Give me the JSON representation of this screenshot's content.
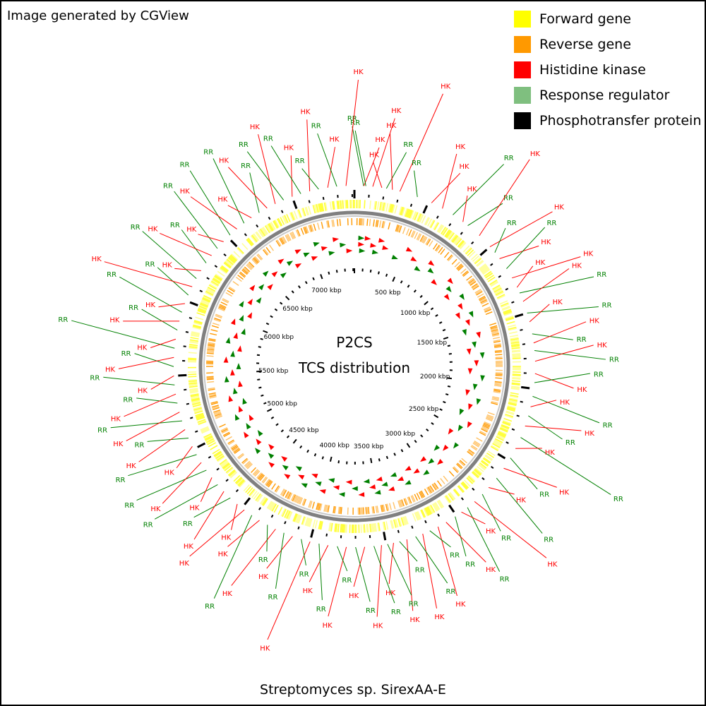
{
  "credit": "Image generated by CGView",
  "legend": [
    {
      "label": "Forward gene",
      "color": "#ffff00"
    },
    {
      "label": "Reverse gene",
      "color": "#ff9900"
    },
    {
      "label": "Histidine kinase",
      "color": "#ff0000"
    },
    {
      "label": "Response regulator",
      "color": "#7fbf7f"
    },
    {
      "label": "Phosphotransfer protein",
      "color": "#000000"
    }
  ],
  "center_title": {
    "line1": "P2CS",
    "line2": "TCS distribution"
  },
  "genome_name": "Streptomyces sp. SirexAA-E",
  "genome_length_kbp": 7415,
  "tick_labels": [
    "500 kbp",
    "1000 kbp",
    "1500 kbp",
    "2000 kbp",
    "2500 kbp",
    "3000 kbp",
    "3500 kbp",
    "4000 kbp",
    "4500 kbp",
    "5000 kbp",
    "5500 kbp",
    "6000 kbp",
    "6500 kbp",
    "7000 kbp"
  ],
  "tick_values_kbp": [
    500,
    1000,
    1500,
    2000,
    2500,
    3000,
    3500,
    4000,
    4500,
    5000,
    5500,
    6000,
    6500,
    7000
  ],
  "colors": {
    "hk": "#ff0000",
    "rr": "#008000",
    "hk_line": "#ff0000",
    "rr_line": "#008000",
    "backbone": "#808080"
  },
  "features": [
    {
      "type": "RR",
      "pos_kbp": 60
    },
    {
      "type": "HK",
      "pos_kbp": 62
    },
    {
      "type": "RR",
      "pos_kbp": 75
    },
    {
      "type": "HK",
      "pos_kbp": 120
    },
    {
      "type": "HK",
      "pos_kbp": 180
    },
    {
      "type": "RR",
      "pos_kbp": 210
    },
    {
      "type": "HK",
      "pos_kbp": 250
    },
    {
      "type": "HK",
      "pos_kbp": 300
    },
    {
      "type": "RR",
      "pos_kbp": 420
    },
    {
      "type": "HK",
      "pos_kbp": 520
    },
    {
      "type": "HK",
      "pos_kbp": 600
    },
    {
      "type": "RR",
      "pos_kbp": 680
    },
    {
      "type": "HK",
      "pos_kbp": 760
    },
    {
      "type": "RR",
      "pos_kbp": 800
    },
    {
      "type": "HK",
      "pos_kbp": 900
    },
    {
      "type": "HK",
      "pos_kbp": 1000
    },
    {
      "type": "RR",
      "pos_kbp": 1050
    },
    {
      "type": "HK",
      "pos_kbp": 1100
    },
    {
      "type": "RR",
      "pos_kbp": 1180
    },
    {
      "type": "HK",
      "pos_kbp": 1250
    },
    {
      "type": "HK",
      "pos_kbp": 1320
    },
    {
      "type": "RR",
      "pos_kbp": 1360
    },
    {
      "type": "HK",
      "pos_kbp": 1420
    },
    {
      "type": "RR",
      "pos_kbp": 1500
    },
    {
      "type": "HK",
      "pos_kbp": 1560
    },
    {
      "type": "RR",
      "pos_kbp": 1640
    },
    {
      "type": "HK",
      "pos_kbp": 1700
    },
    {
      "type": "RR",
      "pos_kbp": 1750
    },
    {
      "type": "HK",
      "pos_kbp": 1820
    },
    {
      "type": "HK",
      "pos_kbp": 1900
    },
    {
      "type": "RR",
      "pos_kbp": 1960
    },
    {
      "type": "RR",
      "pos_kbp": 2050
    },
    {
      "type": "HK",
      "pos_kbp": 2120
    },
    {
      "type": "RR",
      "pos_kbp": 2180
    },
    {
      "type": "HK",
      "pos_kbp": 2250
    },
    {
      "type": "RR",
      "pos_kbp": 2330
    },
    {
      "type": "HK",
      "pos_kbp": 2410
    },
    {
      "type": "RR",
      "pos_kbp": 2480
    },
    {
      "type": "HK",
      "pos_kbp": 2560
    },
    {
      "type": "RR",
      "pos_kbp": 2640
    },
    {
      "type": "HK",
      "pos_kbp": 2720
    },
    {
      "type": "RR",
      "pos_kbp": 2780
    },
    {
      "type": "HK",
      "pos_kbp": 2850
    },
    {
      "type": "RR",
      "pos_kbp": 2910
    },
    {
      "type": "HK",
      "pos_kbp": 2960
    },
    {
      "type": "RR",
      "pos_kbp": 3010
    },
    {
      "type": "HK",
      "pos_kbp": 3080
    },
    {
      "type": "HK",
      "pos_kbp": 3140
    },
    {
      "type": "RR",
      "pos_kbp": 3200
    },
    {
      "type": "HK",
      "pos_kbp": 3250
    },
    {
      "type": "RR",
      "pos_kbp": 3300
    },
    {
      "type": "HK",
      "pos_kbp": 3360
    },
    {
      "type": "RR",
      "pos_kbp": 3410
    },
    {
      "type": "HK",
      "pos_kbp": 3450
    },
    {
      "type": "RR",
      "pos_kbp": 3490
    },
    {
      "type": "HK",
      "pos_kbp": 3530
    },
    {
      "type": "RR",
      "pos_kbp": 3580
    },
    {
      "type": "HK",
      "pos_kbp": 3640
    },
    {
      "type": "RR",
      "pos_kbp": 3700
    },
    {
      "type": "HK",
      "pos_kbp": 3760
    },
    {
      "type": "RR",
      "pos_kbp": 3820
    },
    {
      "type": "HK",
      "pos_kbp": 3880
    },
    {
      "type": "RR",
      "pos_kbp": 3940
    },
    {
      "type": "HK",
      "pos_kbp": 4000
    },
    {
      "type": "RR",
      "pos_kbp": 4060
    },
    {
      "type": "HK",
      "pos_kbp": 4120
    },
    {
      "type": "RR",
      "pos_kbp": 4180
    },
    {
      "type": "HK",
      "pos_kbp": 4240
    },
    {
      "type": "RR",
      "pos_kbp": 4300
    },
    {
      "type": "HK",
      "pos_kbp": 4360
    },
    {
      "type": "RR",
      "pos_kbp": 4420
    },
    {
      "type": "HK",
      "pos_kbp": 4480
    },
    {
      "type": "HK",
      "pos_kbp": 4540
    },
    {
      "type": "RR",
      "pos_kbp": 4600
    },
    {
      "type": "HK",
      "pos_kbp": 4660
    },
    {
      "type": "RR",
      "pos_kbp": 4720
    },
    {
      "type": "HK",
      "pos_kbp": 4780
    },
    {
      "type": "RR",
      "pos_kbp": 4840
    },
    {
      "type": "HK",
      "pos_kbp": 4900
    },
    {
      "type": "RR",
      "pos_kbp": 4960
    },
    {
      "type": "HK",
      "pos_kbp": 5020
    },
    {
      "type": "RR",
      "pos_kbp": 5080
    },
    {
      "type": "HK",
      "pos_kbp": 5140
    },
    {
      "type": "RR",
      "pos_kbp": 5200
    },
    {
      "type": "HK",
      "pos_kbp": 5260
    },
    {
      "type": "RR",
      "pos_kbp": 5320
    },
    {
      "type": "HK",
      "pos_kbp": 5380
    },
    {
      "type": "RR",
      "pos_kbp": 5440
    },
    {
      "type": "HK",
      "pos_kbp": 5500
    },
    {
      "type": "RR",
      "pos_kbp": 5560
    },
    {
      "type": "HK",
      "pos_kbp": 5620
    },
    {
      "type": "RR",
      "pos_kbp": 5680
    },
    {
      "type": "HK",
      "pos_kbp": 5740
    },
    {
      "type": "RR",
      "pos_kbp": 5800
    },
    {
      "type": "HK",
      "pos_kbp": 5860
    },
    {
      "type": "RR",
      "pos_kbp": 5920
    },
    {
      "type": "HK",
      "pos_kbp": 5980
    },
    {
      "type": "RR",
      "pos_kbp": 6040
    },
    {
      "type": "HK",
      "pos_kbp": 6100
    },
    {
      "type": "RR",
      "pos_kbp": 6160
    },
    {
      "type": "HK",
      "pos_kbp": 6220
    },
    {
      "type": "RR",
      "pos_kbp": 6280
    },
    {
      "type": "HK",
      "pos_kbp": 6340
    },
    {
      "type": "RR",
      "pos_kbp": 6400
    },
    {
      "type": "HK",
      "pos_kbp": 6460
    },
    {
      "type": "RR",
      "pos_kbp": 6520
    },
    {
      "type": "HK",
      "pos_kbp": 6580
    },
    {
      "type": "RR",
      "pos_kbp": 6640
    },
    {
      "type": "HK",
      "pos_kbp": 6700
    },
    {
      "type": "RR",
      "pos_kbp": 6760
    },
    {
      "type": "HK",
      "pos_kbp": 6820
    },
    {
      "type": "HK",
      "pos_kbp": 6880
    },
    {
      "type": "RR",
      "pos_kbp": 6940
    },
    {
      "type": "HK",
      "pos_kbp": 7000
    },
    {
      "type": "RR",
      "pos_kbp": 7060
    },
    {
      "type": "HK",
      "pos_kbp": 7120
    },
    {
      "type": "RR",
      "pos_kbp": 7180
    },
    {
      "type": "HK",
      "pos_kbp": 7240
    },
    {
      "type": "RR",
      "pos_kbp": 7300
    },
    {
      "type": "HK",
      "pos_kbp": 7360
    }
  ]
}
